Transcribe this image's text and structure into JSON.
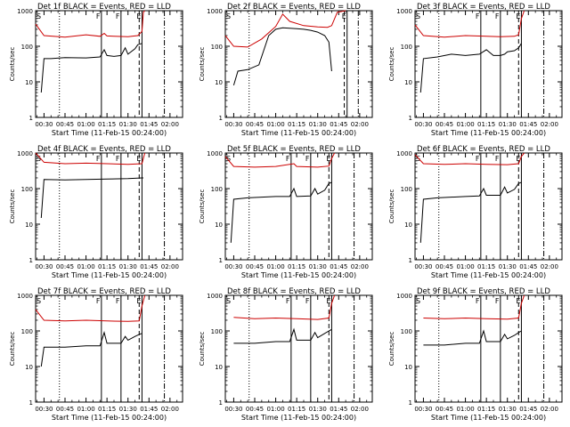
{
  "figure": {
    "xlabel": "Start Time (11-Feb-15 00:24:00)",
    "ylabel": "Counts/sec",
    "x_tick_labels": [
      "00:30",
      "00:45",
      "01:00",
      "01:15",
      "01:30",
      "01:45",
      "02:00"
    ],
    "y_tick_labels": [
      "1",
      "10",
      "100",
      "1000"
    ],
    "marker_labels": [
      "F",
      "F",
      "E",
      "E"
    ]
  },
  "chart_data": [
    {
      "type": "line",
      "title": "Det 1f BLACK = Events, RED = LLD",
      "yscale": "log",
      "ylim": [
        1,
        1000
      ],
      "xlim": [
        "00:24",
        "02:09"
      ],
      "x_ticks": [
        "00:30",
        "00:45",
        "01:00",
        "01:15",
        "01:30",
        "01:45",
        "02:00"
      ],
      "series": [
        {
          "name": "Events",
          "color": "#000000",
          "x": [
            "00:28",
            "00:30",
            "00:35",
            "00:45",
            "01:00",
            "01:10",
            "01:13",
            "01:15",
            "01:20",
            "01:25",
            "01:28",
            "01:30",
            "01:35",
            "01:37",
            "01:40"
          ],
          "y": [
            5,
            45,
            45,
            48,
            47,
            50,
            80,
            55,
            52,
            55,
            90,
            60,
            85,
            110,
            120
          ]
        },
        {
          "name": "LLD",
          "color": "#cc0000",
          "x": [
            "00:24",
            "00:30",
            "00:45",
            "01:00",
            "01:10",
            "01:13",
            "01:15",
            "01:20",
            "01:30",
            "01:37",
            "01:40",
            "01:41",
            "01:42"
          ],
          "y": [
            420,
            200,
            180,
            210,
            190,
            230,
            195,
            190,
            185,
            200,
            260,
            900,
            1000
          ]
        }
      ],
      "markers": [
        {
          "label": "F",
          "x": "01:11"
        },
        {
          "label": "F",
          "x": "01:25"
        },
        {
          "label": "E",
          "x": "01:40"
        }
      ],
      "vlines": [
        {
          "x": "00:41",
          "style": "dotted"
        },
        {
          "x": "01:38",
          "style": "dashed"
        },
        {
          "x": "01:56",
          "style": "dashdot"
        }
      ]
    },
    {
      "type": "line",
      "title": "Det 2f BLACK = Events, RED = LLD",
      "yscale": "log",
      "ylim": [
        1,
        1000
      ],
      "xlim": [
        "00:24",
        "02:09"
      ],
      "series": [
        {
          "name": "Events",
          "color": "#000000",
          "x": [
            "00:30",
            "00:33",
            "00:40",
            "00:48",
            "00:55",
            "01:00",
            "01:05",
            "01:10",
            "01:15",
            "01:20",
            "01:25",
            "01:30",
            "01:35",
            "01:38",
            "01:40"
          ],
          "y": [
            8,
            20,
            22,
            30,
            200,
            300,
            330,
            320,
            310,
            300,
            280,
            250,
            200,
            130,
            20
          ]
        },
        {
          "name": "LLD",
          "color": "#cc0000",
          "x": [
            "00:24",
            "00:30",
            "00:40",
            "00:50",
            "01:00",
            "01:05",
            "01:10",
            "01:20",
            "01:30",
            "01:37",
            "01:40",
            "01:44",
            "01:50"
          ],
          "y": [
            200,
            100,
            95,
            160,
            360,
            800,
            500,
            380,
            350,
            340,
            380,
            900,
            1000
          ]
        }
      ],
      "markers": [
        {
          "label": "E",
          "x": "01:51"
        }
      ],
      "vlines": [
        {
          "x": "00:41",
          "style": "dotted"
        },
        {
          "x": "01:49",
          "style": "dashed"
        },
        {
          "x": "01:59",
          "style": "dashdot"
        }
      ]
    },
    {
      "type": "line",
      "title": "Det 3f BLACK = Events, RED = LLD",
      "yscale": "log",
      "ylim": [
        1,
        1000
      ],
      "xlim": [
        "00:24",
        "02:09"
      ],
      "series": [
        {
          "name": "Events",
          "color": "#000000",
          "x": [
            "00:28",
            "00:30",
            "00:40",
            "00:50",
            "01:00",
            "01:10",
            "01:15",
            "01:20",
            "01:25",
            "01:28",
            "01:30",
            "01:35",
            "01:38",
            "01:40"
          ],
          "y": [
            5,
            45,
            50,
            60,
            55,
            60,
            80,
            55,
            55,
            60,
            70,
            75,
            90,
            120
          ]
        },
        {
          "name": "LLD",
          "color": "#cc0000",
          "x": [
            "00:24",
            "00:30",
            "00:45",
            "01:00",
            "01:15",
            "01:25",
            "01:35",
            "01:38",
            "01:40",
            "01:42"
          ],
          "y": [
            400,
            200,
            180,
            200,
            190,
            185,
            190,
            210,
            600,
            1000
          ]
        }
      ],
      "markers": [
        {
          "label": "F",
          "x": "01:11"
        },
        {
          "label": "F",
          "x": "01:25"
        },
        {
          "label": "E",
          "x": "01:40"
        }
      ],
      "vlines": [
        {
          "x": "00:41",
          "style": "dotted"
        },
        {
          "x": "01:38",
          "style": "dashed"
        },
        {
          "x": "01:56",
          "style": "dashdot"
        }
      ]
    },
    {
      "type": "line",
      "title": "Det 4f BLACK = Events, RED = LLD",
      "yscale": "log",
      "ylim": [
        1,
        1000
      ],
      "xlim": [
        "00:24",
        "02:09"
      ],
      "series": [
        {
          "name": "Events",
          "color": "#000000",
          "x": [
            "00:28",
            "00:30",
            "00:45",
            "01:00",
            "01:15",
            "01:30",
            "01:40",
            "01:41"
          ],
          "y": [
            15,
            180,
            175,
            180,
            185,
            190,
            200,
            200
          ]
        },
        {
          "name": "LLD",
          "color": "#cc0000",
          "x": [
            "00:24",
            "00:30",
            "00:45",
            "01:00",
            "01:15",
            "01:30",
            "01:40",
            "01:42"
          ],
          "y": [
            1000,
            550,
            500,
            520,
            500,
            480,
            500,
            1000
          ]
        }
      ],
      "markers": [
        {
          "label": "F",
          "x": "01:11"
        },
        {
          "label": "F",
          "x": "01:25"
        },
        {
          "label": "E",
          "x": "01:40"
        }
      ],
      "vlines": [
        {
          "x": "00:41",
          "style": "dotted"
        },
        {
          "x": "01:38",
          "style": "dashed"
        },
        {
          "x": "01:56",
          "style": "dashdot"
        }
      ]
    },
    {
      "type": "line",
      "title": "Det 5f BLACK = Events, RED = LLD",
      "yscale": "log",
      "ylim": [
        1,
        1000
      ],
      "xlim": [
        "00:24",
        "02:09"
      ],
      "series": [
        {
          "name": "Events",
          "color": "#000000",
          "x": [
            "00:28",
            "00:30",
            "00:40",
            "01:00",
            "01:10",
            "01:13",
            "01:15",
            "01:25",
            "01:28",
            "01:30",
            "01:35",
            "01:38",
            "01:40"
          ],
          "y": [
            3,
            50,
            55,
            60,
            60,
            100,
            60,
            62,
            100,
            70,
            90,
            140,
            150
          ]
        },
        {
          "name": "LLD",
          "color": "#cc0000",
          "x": [
            "00:24",
            "00:30",
            "00:45",
            "01:00",
            "01:13",
            "01:15",
            "01:30",
            "01:38",
            "01:40",
            "01:42"
          ],
          "y": [
            800,
            420,
            400,
            420,
            500,
            420,
            400,
            430,
            700,
            1000
          ]
        }
      ],
      "markers": [
        {
          "label": "F",
          "x": "01:11"
        },
        {
          "label": "F",
          "x": "01:25"
        },
        {
          "label": "E",
          "x": "01:40"
        }
      ],
      "vlines": [
        {
          "x": "00:41",
          "style": "dotted"
        },
        {
          "x": "01:38",
          "style": "dashed"
        },
        {
          "x": "01:56",
          "style": "dashdot"
        }
      ]
    },
    {
      "type": "line",
      "title": "Det 6f BLACK = Events, RED = LLD",
      "yscale": "log",
      "ylim": [
        1,
        1000
      ],
      "xlim": [
        "00:24",
        "02:09"
      ],
      "series": [
        {
          "name": "Events",
          "color": "#000000",
          "x": [
            "00:28",
            "00:30",
            "00:40",
            "01:00",
            "01:10",
            "01:13",
            "01:15",
            "01:25",
            "01:28",
            "01:30",
            "01:35",
            "01:38",
            "01:40"
          ],
          "y": [
            3,
            50,
            55,
            60,
            62,
            100,
            65,
            65,
            110,
            75,
            95,
            140,
            150
          ]
        },
        {
          "name": "LLD",
          "color": "#cc0000",
          "x": [
            "00:24",
            "00:30",
            "00:45",
            "01:00",
            "01:15",
            "01:30",
            "01:38",
            "01:40",
            "01:42"
          ],
          "y": [
            900,
            500,
            480,
            500,
            480,
            470,
            500,
            800,
            1000
          ]
        }
      ],
      "markers": [
        {
          "label": "F",
          "x": "01:11"
        },
        {
          "label": "F",
          "x": "01:25"
        },
        {
          "label": "E",
          "x": "01:40"
        }
      ],
      "vlines": [
        {
          "x": "00:41",
          "style": "dotted"
        },
        {
          "x": "01:38",
          "style": "dashed"
        },
        {
          "x": "01:56",
          "style": "dashdot"
        }
      ]
    },
    {
      "type": "line",
      "title": "Det 7f BLACK = Events, RED = LLD",
      "yscale": "log",
      "ylim": [
        1,
        1000
      ],
      "xlim": [
        "00:24",
        "02:09"
      ],
      "series": [
        {
          "name": "Events",
          "color": "#000000",
          "x": [
            "00:28",
            "00:30",
            "00:45",
            "01:00",
            "01:10",
            "01:13",
            "01:15",
            "01:25",
            "01:28",
            "01:30",
            "01:35",
            "01:38",
            "01:40"
          ],
          "y": [
            10,
            35,
            35,
            38,
            38,
            90,
            45,
            45,
            70,
            55,
            70,
            80,
            85
          ]
        },
        {
          "name": "LLD",
          "color": "#cc0000",
          "x": [
            "00:24",
            "00:30",
            "00:45",
            "01:00",
            "01:15",
            "01:30",
            "01:38",
            "01:40",
            "01:42"
          ],
          "y": [
            400,
            200,
            190,
            200,
            190,
            185,
            190,
            500,
            1000
          ]
        }
      ],
      "markers": [
        {
          "label": "F",
          "x": "01:11"
        },
        {
          "label": "F",
          "x": "01:25"
        },
        {
          "label": "E",
          "x": "01:40"
        }
      ],
      "vlines": [
        {
          "x": "00:41",
          "style": "dotted"
        },
        {
          "x": "01:38",
          "style": "dashed"
        },
        {
          "x": "01:56",
          "style": "dashdot"
        }
      ]
    },
    {
      "type": "line",
      "title": "Det 8f BLACK = Events, RED = LLD",
      "yscale": "log",
      "ylim": [
        1,
        1000
      ],
      "xlim": [
        "00:24",
        "02:09"
      ],
      "series": [
        {
          "name": "Events",
          "color": "#000000",
          "x": [
            "00:30",
            "00:45",
            "01:00",
            "01:10",
            "01:13",
            "01:15",
            "01:25",
            "01:28",
            "01:30",
            "01:35",
            "01:38",
            "01:40"
          ],
          "y": [
            45,
            45,
            50,
            50,
            110,
            55,
            55,
            90,
            65,
            85,
            100,
            110
          ]
        },
        {
          "name": "LLD",
          "color": "#cc0000",
          "x": [
            "00:30",
            "00:45",
            "01:00",
            "01:15",
            "01:30",
            "01:38",
            "01:40",
            "01:42"
          ],
          "y": [
            240,
            220,
            230,
            220,
            210,
            230,
            600,
            1000
          ]
        }
      ],
      "markers": [
        {
          "label": "F",
          "x": "01:11"
        },
        {
          "label": "F",
          "x": "01:25"
        },
        {
          "label": "E",
          "x": "01:40"
        }
      ],
      "vlines": [
        {
          "x": "00:41",
          "style": "dotted"
        },
        {
          "x": "01:38",
          "style": "dashed"
        },
        {
          "x": "01:56",
          "style": "dashdot"
        }
      ]
    },
    {
      "type": "line",
      "title": "Det 9f BLACK = Events, RED = LLD",
      "yscale": "log",
      "ylim": [
        1,
        1000
      ],
      "xlim": [
        "00:24",
        "02:09"
      ],
      "series": [
        {
          "name": "Events",
          "color": "#000000",
          "x": [
            "00:30",
            "00:45",
            "01:00",
            "01:10",
            "01:13",
            "01:15",
            "01:25",
            "01:28",
            "01:30",
            "01:35",
            "01:38",
            "01:40"
          ],
          "y": [
            40,
            40,
            45,
            45,
            100,
            50,
            50,
            80,
            60,
            75,
            90,
            100
          ]
        },
        {
          "name": "LLD",
          "color": "#cc0000",
          "x": [
            "00:30",
            "00:45",
            "01:00",
            "01:15",
            "01:30",
            "01:38",
            "01:40",
            "01:42"
          ],
          "y": [
            230,
            220,
            230,
            220,
            215,
            230,
            600,
            1000
          ]
        }
      ],
      "markers": [
        {
          "label": "F",
          "x": "01:11"
        },
        {
          "label": "F",
          "x": "01:25"
        },
        {
          "label": "E",
          "x": "01:40"
        }
      ],
      "vlines": [
        {
          "x": "00:41",
          "style": "dotted"
        },
        {
          "x": "01:38",
          "style": "dashed"
        },
        {
          "x": "01:56",
          "style": "dashdot"
        }
      ]
    }
  ]
}
